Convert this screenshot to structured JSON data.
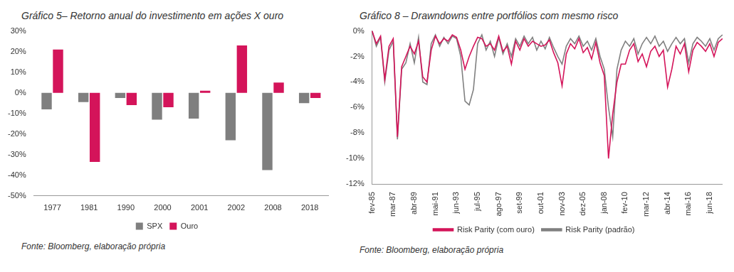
{
  "chart_data": [
    {
      "type": "bar",
      "title": "Gráfico 5– Retorno anual do investimento em ações X ouro",
      "annotations": [
        "Fonte: Bloomberg, elaboração própria"
      ],
      "categories": [
        "1977",
        "1981",
        "1990",
        "2000",
        "2001",
        "2002",
        "2008",
        "2018"
      ],
      "series": [
        {
          "name": "SPX",
          "color": "#7f7f7f",
          "values": [
            -8,
            -4.5,
            -2.5,
            -13,
            -12.5,
            -23,
            -37.5,
            -5
          ]
        },
        {
          "name": "Ouro",
          "color": "#d4145a",
          "values": [
            21,
            -33.5,
            -6,
            -7,
            1,
            23,
            5,
            -2.5
          ]
        }
      ],
      "ylim": [
        -50,
        30
      ],
      "yticks": [
        {
          "value": -50,
          "label": "-50%"
        },
        {
          "value": -40,
          "label": "-40%"
        },
        {
          "value": -30,
          "label": "-30%"
        },
        {
          "value": -20,
          "label": "-20%"
        },
        {
          "value": -10,
          "label": "-10%"
        },
        {
          "value": 0,
          "label": "0%"
        },
        {
          "value": 10,
          "label": "10%"
        },
        {
          "value": 20,
          "label": "20%"
        },
        {
          "value": 30,
          "label": "30%"
        }
      ],
      "grid": false,
      "legend": "bottom"
    },
    {
      "type": "line",
      "title": "Gráfico 8 – Drawndowns entre portfólios com mesmo risco",
      "annotations": [
        "Fonte: Bloomberg, elaboração própria"
      ],
      "categories": [
        "fev-85",
        null,
        null,
        null,
        null,
        "mar-87",
        null,
        null,
        null,
        null,
        "abr-89",
        null,
        null,
        null,
        null,
        "mai-91",
        null,
        null,
        null,
        null,
        "jun-93",
        null,
        null,
        null,
        null,
        "jul-95",
        null,
        null,
        null,
        null,
        "ago-97",
        null,
        null,
        null,
        null,
        "set-99",
        null,
        null,
        null,
        null,
        "out-01",
        null,
        null,
        null,
        null,
        "nov-03",
        null,
        null,
        null,
        null,
        "dez-05",
        null,
        null,
        null,
        null,
        "jan-08",
        null,
        null,
        null,
        null,
        "fev-10",
        null,
        null,
        null,
        null,
        "mar-12",
        null,
        null,
        null,
        null,
        "abr-14",
        null,
        null,
        null,
        null,
        "mai-16",
        null,
        null,
        null,
        null,
        "jun-18",
        null,
        null,
        null
      ],
      "series": [
        {
          "name": "Risk Parity (com ouro)",
          "color": "#d4145a",
          "values": [
            0,
            -1.0,
            -0.4,
            -3.8,
            -1.2,
            -0.6,
            -8.3,
            -2.8,
            -2.0,
            -1.2,
            -1.8,
            -0.8,
            -3.6,
            -4.0,
            -1.5,
            -0.4,
            -1.0,
            -0.6,
            -0.8,
            -0.3,
            -0.5,
            -1.5,
            -3.0,
            -2.0,
            -1.2,
            -0.5,
            -0.6,
            -1.2,
            -1.0,
            -1.5,
            -0.4,
            -1.6,
            -1.2,
            -2.6,
            -0.8,
            -1.5,
            -0.6,
            -1.2,
            -0.8,
            -1.0,
            -1.2,
            -1.1,
            -0.7,
            -1.7,
            -2.5,
            -4.3,
            -1.8,
            -1.0,
            -1.4,
            -0.6,
            -1.7,
            -1.3,
            -2.2,
            -0.9,
            -2.5,
            -3.5,
            -10.0,
            -6.5,
            -4.0,
            -2.6,
            -2.6,
            -1.5,
            -1.0,
            -2.4,
            -1.8,
            -2.8,
            -1.6,
            -1.2,
            -2.0,
            -1.5,
            -4.4,
            -3.0,
            -1.2,
            -1.8,
            -1.0,
            -3.2,
            -1.5,
            -0.9,
            -1.2,
            -1.6,
            -1.0,
            -2.0,
            -0.9,
            -0.6
          ]
        },
        {
          "name": "Risk Parity (padrão)",
          "color": "#808080",
          "values": [
            0,
            -1.2,
            -0.5,
            -4.0,
            -1.5,
            -0.8,
            -8.5,
            -3.0,
            -2.5,
            -1.0,
            -2.5,
            -0.5,
            -4.0,
            -4.2,
            -1.0,
            -0.3,
            -1.2,
            -0.5,
            -1.0,
            -0.4,
            -0.6,
            -2.0,
            -5.5,
            -5.8,
            -4.6,
            -1.0,
            -0.3,
            -1.5,
            -0.8,
            -2.0,
            -0.5,
            -1.8,
            -1.0,
            -2.0,
            -0.6,
            -1.2,
            -0.4,
            -1.0,
            -0.5,
            -1.5,
            -0.8,
            -1.4,
            -0.5,
            -1.3,
            -2.0,
            -2.6,
            -1.2,
            -0.6,
            -1.0,
            -0.4,
            -1.2,
            -0.8,
            -1.5,
            -0.6,
            -2.0,
            -3.0,
            -6.0,
            -8.3,
            -3.0,
            -1.5,
            -0.8,
            -1.2,
            -0.6,
            -1.8,
            -1.0,
            -0.5,
            -1.0,
            -0.4,
            -1.2,
            -0.8,
            -1.6,
            -1.0,
            -0.5,
            -1.0,
            -0.6,
            -2.5,
            -1.0,
            -0.5,
            -0.8,
            -1.2,
            -0.6,
            -1.5,
            -0.6,
            -0.3
          ]
        }
      ],
      "ylim": [
        -12,
        0
      ],
      "yticks": [
        {
          "value": -12,
          "label": "-12%"
        },
        {
          "value": -10,
          "label": "-10%"
        },
        {
          "value": -8,
          "label": "-8%"
        },
        {
          "value": -6,
          "label": "-6%"
        },
        {
          "value": -4,
          "label": "-4%"
        },
        {
          "value": -2,
          "label": "-2%"
        },
        {
          "value": 0,
          "label": "0%"
        }
      ],
      "grid": false,
      "legend": "bottom"
    }
  ]
}
